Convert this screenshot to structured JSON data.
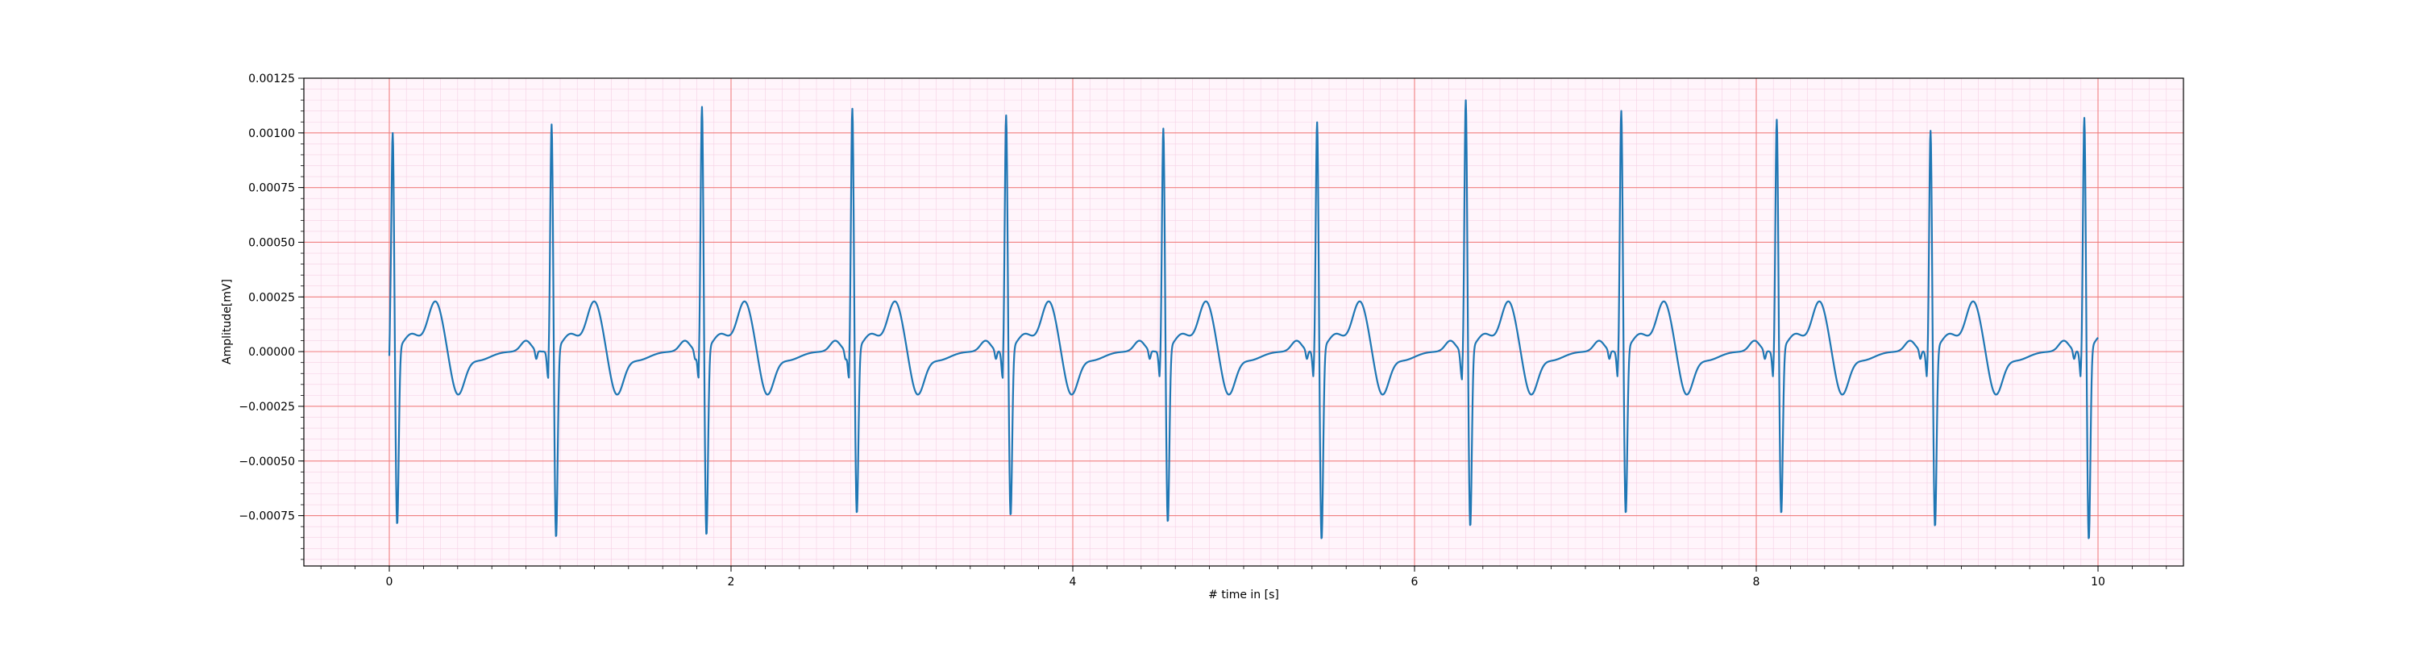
{
  "chart_data": {
    "type": "line",
    "title": "",
    "xlabel": "# time in [s]",
    "ylabel": "Amplitude[mV]",
    "xlim": [
      -0.5,
      10.5
    ],
    "ylim": [
      -0.00098,
      0.00125
    ],
    "x_ticks": [
      0,
      2,
      4,
      6,
      8,
      10
    ],
    "x_tick_labels": [
      "0",
      "2",
      "4",
      "6",
      "8",
      "10"
    ],
    "y_ticks": [
      -0.00075,
      -0.0005,
      -0.00025,
      0.0,
      0.00025,
      0.0005,
      0.00075,
      0.001,
      0.00125
    ],
    "y_tick_labels": [
      "−0.00075",
      "−0.00050",
      "−0.00025",
      "0.00000",
      "0.00025",
      "0.00050",
      "0.00075",
      "0.00100",
      "0.00125"
    ],
    "grid": {
      "major": true,
      "minor": true,
      "major_color": "#f08080",
      "minor_color": "#f5d0e4"
    },
    "line_color": "#1f77b4",
    "waveform": {
      "beat_onset_times_s": [
        0.0,
        0.93,
        1.81,
        2.69,
        3.59,
        4.51,
        5.41,
        6.28,
        7.19,
        8.1,
        9.0,
        9.9
      ],
      "r_peak_times_s": [
        0.05,
        0.94,
        1.82,
        2.7,
        3.6,
        4.52,
        5.42,
        6.29,
        7.2,
        8.11,
        9.01,
        9.91
      ],
      "r_peak_amplitudes": [
        0.00101,
        0.00105,
        0.00113,
        0.00112,
        0.00109,
        0.00103,
        0.00106,
        0.00116,
        0.00111,
        0.00107,
        0.00102,
        0.00108
      ],
      "s_trough_amplitudes": [
        -0.00081,
        -0.00087,
        -0.00086,
        -0.00076,
        -0.00077,
        -0.0008,
        -0.00088,
        -0.00082,
        -0.00076,
        -0.00076,
        -0.00082,
        -0.00088
      ],
      "t_wave_peak_amplitude": 0.00028,
      "post_t_trough_amplitude": -0.00019,
      "p_wave_peak_amplitude": 5e-05,
      "end_time_s": 10.0
    }
  }
}
